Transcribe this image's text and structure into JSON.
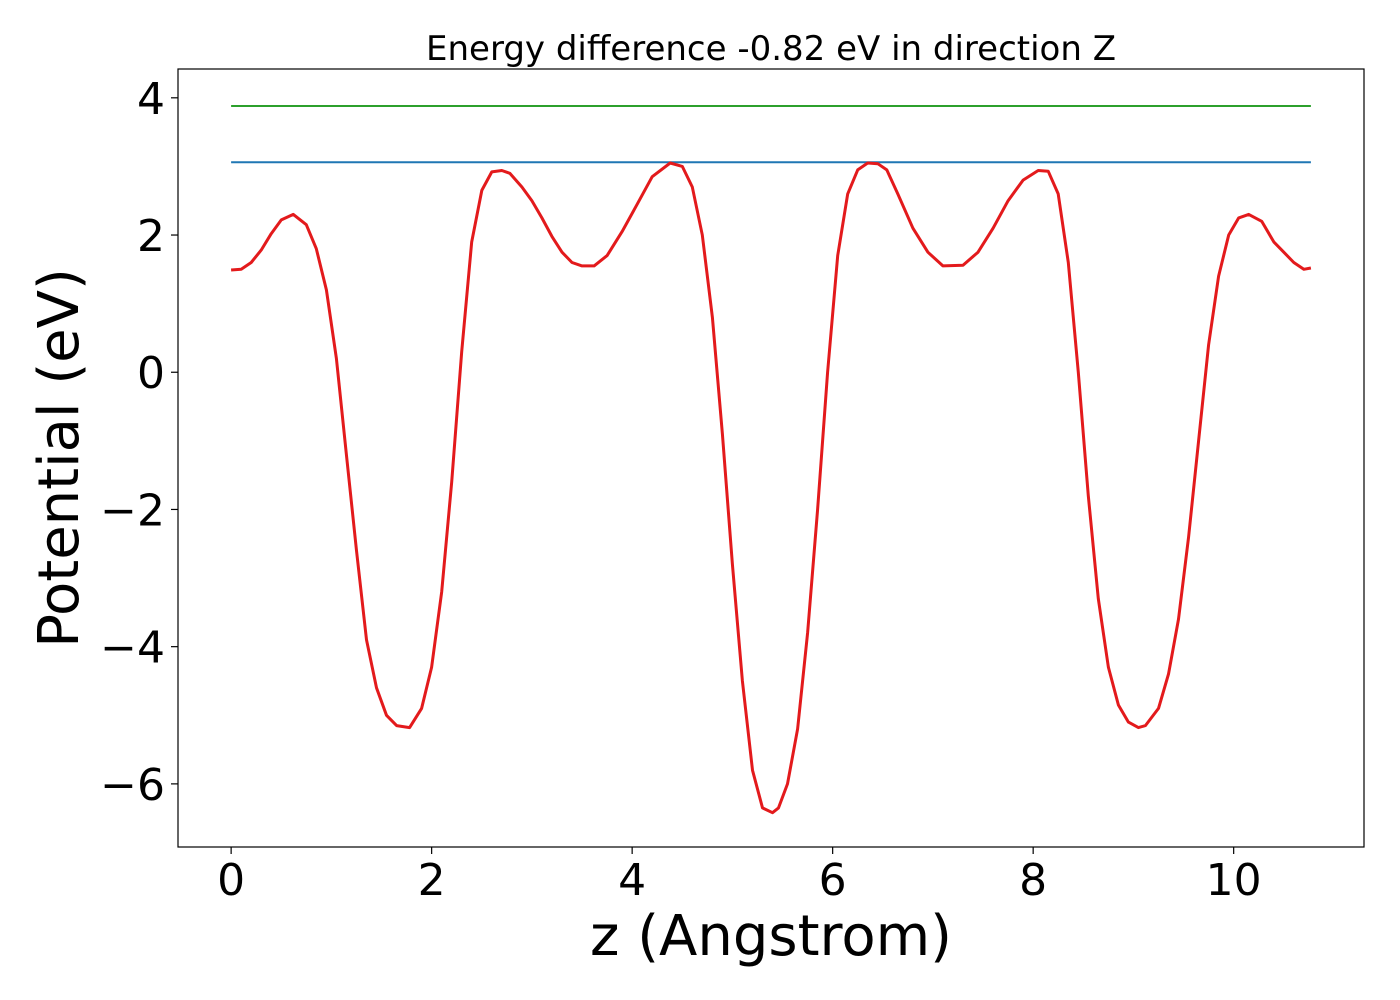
{
  "chart_data": {
    "type": "line",
    "title": "Energy difference -0.82 eV in direction Z",
    "xlabel": "z (Angstrom)",
    "ylabel": "Potential (eV)",
    "xlim": [
      -0.53,
      11.3
    ],
    "ylim": [
      -6.92,
      4.42
    ],
    "x_ticks": [
      {
        "value": 0,
        "label": "0"
      },
      {
        "value": 2,
        "label": "2"
      },
      {
        "value": 4,
        "label": "4"
      },
      {
        "value": 6,
        "label": "6"
      },
      {
        "value": 8,
        "label": "8"
      },
      {
        "value": 10,
        "label": "10"
      }
    ],
    "y_ticks": [
      {
        "value": -6,
        "label": "−6"
      },
      {
        "value": -4,
        "label": "−4"
      },
      {
        "value": -2,
        "label": "−2"
      },
      {
        "value": 0,
        "label": "0"
      },
      {
        "value": 2,
        "label": "2"
      },
      {
        "value": 4,
        "label": "4"
      }
    ],
    "grid": false,
    "legend": "none",
    "series": [
      {
        "color": "#2ca02c",
        "x": [
          0,
          10.77
        ],
        "y": [
          3.88,
          3.88
        ]
      },
      {
        "color": "#1f77b4",
        "x": [
          0,
          10.77
        ],
        "y": [
          3.06,
          3.06
        ]
      },
      {
        "color": "#e31a1c",
        "x": [
          0,
          0.1,
          0.2,
          0.3,
          0.4,
          0.5,
          0.62,
          0.75,
          0.85,
          0.95,
          1.05,
          1.15,
          1.25,
          1.35,
          1.45,
          1.55,
          1.65,
          1.78,
          1.9,
          2.0,
          2.1,
          2.2,
          2.3,
          2.4,
          2.5,
          2.6,
          2.7,
          2.78,
          2.9,
          3.0,
          3.1,
          3.2,
          3.3,
          3.4,
          3.5,
          3.62,
          3.75,
          3.9,
          4.05,
          4.2,
          4.38,
          4.5,
          4.6,
          4.7,
          4.8,
          4.9,
          5.0,
          5.1,
          5.2,
          5.3,
          5.4,
          5.46,
          5.55,
          5.65,
          5.75,
          5.85,
          5.95,
          6.05,
          6.15,
          6.25,
          6.35,
          6.45,
          6.54,
          6.65,
          6.8,
          6.95,
          7.1,
          7.3,
          7.45,
          7.6,
          7.75,
          7.9,
          8.05,
          8.15,
          8.25,
          8.35,
          8.45,
          8.55,
          8.65,
          8.75,
          8.85,
          8.95,
          9.05,
          9.12,
          9.25,
          9.35,
          9.45,
          9.55,
          9.65,
          9.75,
          9.85,
          9.95,
          10.05,
          10.15,
          10.28,
          10.4,
          10.5,
          10.6,
          10.7,
          10.77
        ],
        "y": [
          1.49,
          1.5,
          1.6,
          1.78,
          2.02,
          2.22,
          2.3,
          2.15,
          1.8,
          1.2,
          0.2,
          -1.2,
          -2.6,
          -3.9,
          -4.6,
          -5.0,
          -5.15,
          -5.18,
          -4.9,
          -4.3,
          -3.2,
          -1.6,
          0.3,
          1.9,
          2.65,
          2.92,
          2.94,
          2.9,
          2.7,
          2.5,
          2.25,
          1.98,
          1.75,
          1.6,
          1.55,
          1.55,
          1.7,
          2.05,
          2.45,
          2.85,
          3.05,
          3.0,
          2.7,
          2.0,
          0.8,
          -0.9,
          -2.8,
          -4.5,
          -5.8,
          -6.35,
          -6.42,
          -6.35,
          -6.0,
          -5.2,
          -3.8,
          -2.0,
          0.0,
          1.7,
          2.6,
          2.95,
          3.05,
          3.04,
          2.95,
          2.6,
          2.1,
          1.75,
          1.55,
          1.56,
          1.75,
          2.1,
          2.5,
          2.8,
          2.94,
          2.93,
          2.6,
          1.6,
          0.0,
          -1.8,
          -3.3,
          -4.3,
          -4.85,
          -5.1,
          -5.18,
          -5.15,
          -4.9,
          -4.4,
          -3.6,
          -2.4,
          -1.0,
          0.4,
          1.4,
          2.0,
          2.25,
          2.3,
          2.2,
          1.9,
          1.75,
          1.6,
          1.5,
          1.52
        ]
      }
    ]
  }
}
